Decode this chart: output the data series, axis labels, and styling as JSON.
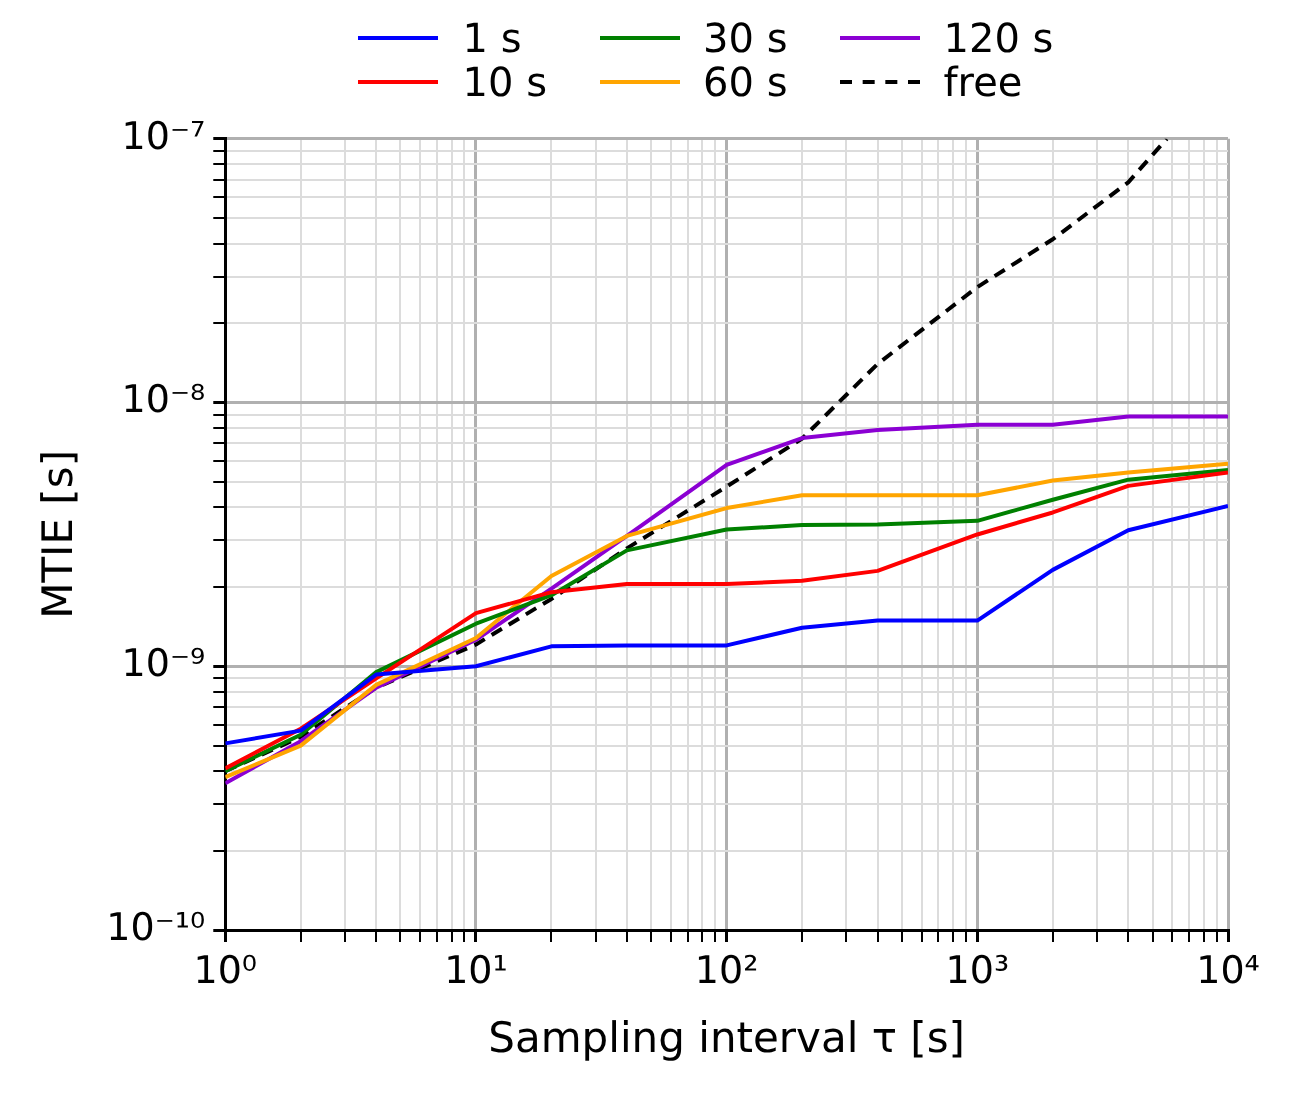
{
  "chart_data": {
    "type": "line",
    "xlabel": "Sampling interval τ [s]",
    "ylabel": "MTIE [s]",
    "log": "xy",
    "grid": true,
    "legend": "top",
    "marker": "none",
    "x": [
      1,
      2,
      4,
      10,
      20,
      40,
      100,
      200,
      400,
      1000,
      2000,
      4000,
      10000
    ],
    "series": [
      {
        "name": "1 s",
        "color": "#0000ff",
        "values": [
          5.1e-10,
          5.7e-10,
          9.3e-10,
          1e-09,
          1.19e-09,
          1.2e-09,
          1.2e-09,
          1.4e-09,
          1.49e-09,
          1.49e-09,
          2.32e-09,
          3.28e-09,
          4.05e-09
        ]
      },
      {
        "name": "10 s",
        "color": "#ff0000",
        "values": [
          4.1e-10,
          5.8e-10,
          9e-10,
          1.59e-09,
          1.91e-09,
          2.05e-09,
          2.05e-09,
          2.11e-09,
          2.3e-09,
          3.16e-09,
          3.83e-09,
          4.83e-09,
          5.43e-09
        ]
      },
      {
        "name": "30 s",
        "color": "#008000",
        "values": [
          4e-10,
          5.5e-10,
          9.5e-10,
          1.45e-09,
          1.86e-09,
          2.75e-09,
          3.3e-09,
          3.43e-09,
          3.45e-09,
          3.56e-09,
          4.28e-09,
          5.1e-09,
          5.55e-09
        ]
      },
      {
        "name": "60 s",
        "color": "#ffa500",
        "values": [
          3.8e-10,
          5e-10,
          8.5e-10,
          1.28e-09,
          2.2e-09,
          3.12e-09,
          3.98e-09,
          4.45e-09,
          4.45e-09,
          4.45e-09,
          5.06e-09,
          5.43e-09,
          5.86e-09
        ]
      },
      {
        "name": "120 s",
        "color": "#8b00d3",
        "values": [
          3.6e-10,
          5.2e-10,
          8.3e-10,
          1.26e-09,
          1.97e-09,
          3.12e-09,
          5.8e-09,
          7.33e-09,
          7.87e-09,
          8.23e-09,
          8.23e-09,
          8.85e-09,
          8.85e-09
        ]
      },
      {
        "name": "free",
        "color": "#000000",
        "line_style": "dashed",
        "x": [
          1,
          2,
          4,
          10,
          20,
          40,
          100,
          200,
          400,
          1000,
          2000,
          4000,
          5700
        ],
        "values": [
          4e-10,
          5.4e-10,
          8.3e-10,
          1.21e-09,
          1.8e-09,
          2.8e-09,
          4.8e-09,
          7.3e-09,
          1.4e-08,
          2.74e-08,
          4.16e-08,
          6.84e-08,
          1e-07
        ]
      }
    ],
    "xlim": [
      1,
      10000
    ],
    "xticks": [
      {
        "value": 1,
        "label": "10⁰"
      },
      {
        "value": 2,
        "label": null
      },
      {
        "value": 3,
        "label": null
      },
      {
        "value": 4,
        "label": null
      },
      {
        "value": 5,
        "label": null
      },
      {
        "value": 6,
        "label": null
      },
      {
        "value": 7,
        "label": null
      },
      {
        "value": 8,
        "label": null
      },
      {
        "value": 9,
        "label": null
      },
      {
        "value": 10,
        "label": "10¹"
      },
      {
        "value": 20,
        "label": null
      },
      {
        "value": 30,
        "label": null
      },
      {
        "value": 40,
        "label": null
      },
      {
        "value": 50,
        "label": null
      },
      {
        "value": 60,
        "label": null
      },
      {
        "value": 70,
        "label": null
      },
      {
        "value": 80,
        "label": null
      },
      {
        "value": 90,
        "label": null
      },
      {
        "value": 100,
        "label": "10²"
      },
      {
        "value": 200,
        "label": null
      },
      {
        "value": 300,
        "label": null
      },
      {
        "value": 400,
        "label": null
      },
      {
        "value": 500,
        "label": null
      },
      {
        "value": 600,
        "label": null
      },
      {
        "value": 700,
        "label": null
      },
      {
        "value": 800,
        "label": null
      },
      {
        "value": 900,
        "label": null
      },
      {
        "value": 1000,
        "label": "10³"
      },
      {
        "value": 2000,
        "label": null
      },
      {
        "value": 3000,
        "label": null
      },
      {
        "value": 4000,
        "label": null
      },
      {
        "value": 5000,
        "label": null
      },
      {
        "value": 6000,
        "label": null
      },
      {
        "value": 7000,
        "label": null
      },
      {
        "value": 8000,
        "label": null
      },
      {
        "value": 9000,
        "label": null
      },
      {
        "value": 10000,
        "label": "10⁴"
      }
    ],
    "ylim": [
      1e-10,
      1e-07
    ],
    "yticks": [
      {
        "value": 1e-10,
        "label": "10⁻¹⁰"
      },
      {
        "value": 2e-10,
        "label": null
      },
      {
        "value": 3e-10,
        "label": null
      },
      {
        "value": 4e-10,
        "label": null
      },
      {
        "value": 5e-10,
        "label": null
      },
      {
        "value": 6e-10,
        "label": null
      },
      {
        "value": 7e-10,
        "label": null
      },
      {
        "value": 8e-10,
        "label": null
      },
      {
        "value": 9e-10,
        "label": null
      },
      {
        "value": 1e-09,
        "label": "10⁻⁹"
      },
      {
        "value": 2e-09,
        "label": null
      },
      {
        "value": 3e-09,
        "label": null
      },
      {
        "value": 4e-09,
        "label": null
      },
      {
        "value": 5e-09,
        "label": null
      },
      {
        "value": 6e-09,
        "label": null
      },
      {
        "value": 7e-09,
        "label": null
      },
      {
        "value": 8e-09,
        "label": null
      },
      {
        "value": 9e-09,
        "label": null
      },
      {
        "value": 1e-08,
        "label": "10⁻⁸"
      },
      {
        "value": 2e-08,
        "label": null
      },
      {
        "value": 3e-08,
        "label": null
      },
      {
        "value": 4e-08,
        "label": null
      },
      {
        "value": 5e-08,
        "label": null
      },
      {
        "value": 6e-08,
        "label": null
      },
      {
        "value": 7e-08,
        "label": null
      },
      {
        "value": 8e-08,
        "label": null
      },
      {
        "value": 9e-08,
        "label": null
      },
      {
        "value": 1e-07,
        "label": "10⁻⁷"
      }
    ]
  }
}
